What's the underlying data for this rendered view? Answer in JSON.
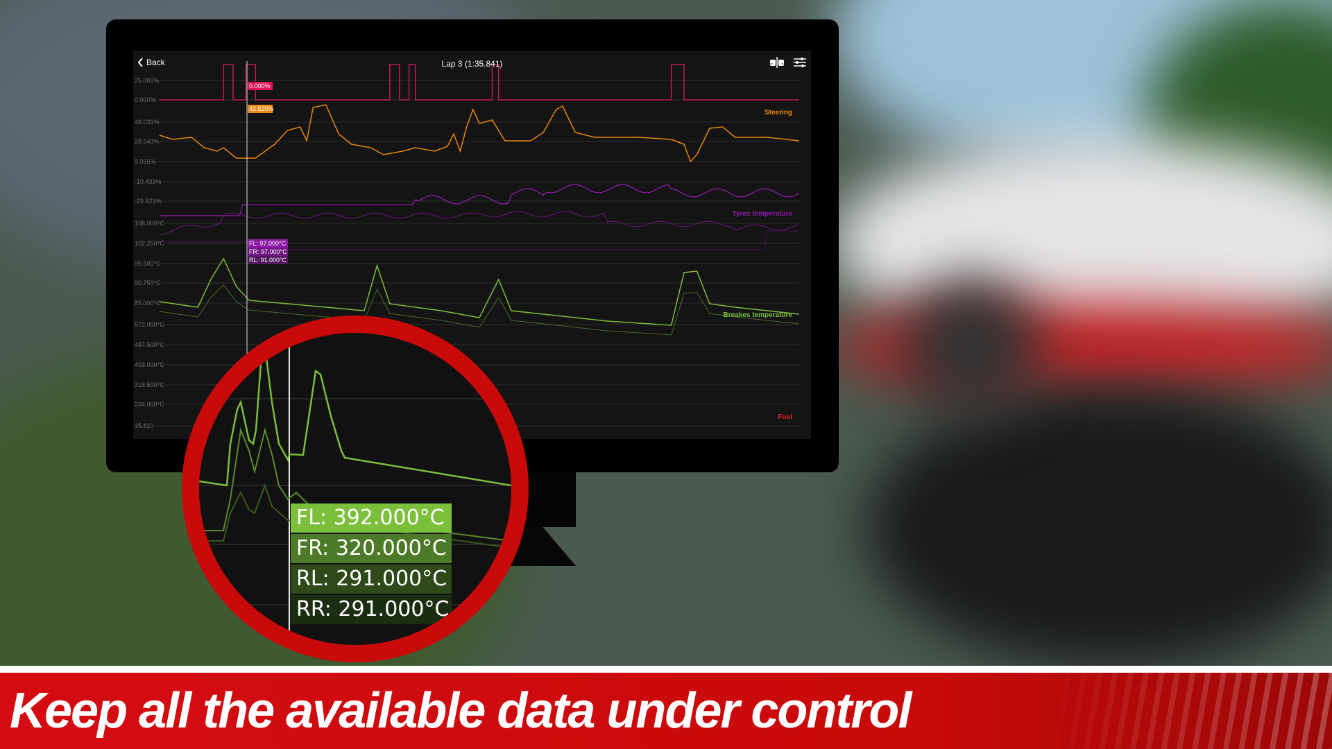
{
  "header": {
    "back_label": "Back",
    "title": "Lap 3 (1:35.841)",
    "icons": [
      "car-compare-icon",
      "sliders-icon"
    ]
  },
  "colors": {
    "throttle": "#c2185b",
    "steering": "#e8870c",
    "tyres": "#8e1aa8",
    "brakes": "#7cbf3a",
    "fuel": "#e02020",
    "ring": "#c80a0a"
  },
  "charts": [
    {
      "label": "",
      "ticks": [
        "25.000%",
        "0.000%"
      ],
      "tooltip": [
        "0.000%"
      ]
    },
    {
      "label": "Steering",
      "ticks": [
        "48.031%",
        "28.543%",
        "9.055%",
        "-10.433%",
        "-29.921%"
      ],
      "tooltip": [
        "42.520%"
      ]
    },
    {
      "label": "Tyres temperature",
      "ticks": [
        "108.000°C",
        "102.250°C",
        "96.500°C",
        "90.750°C",
        "85.000°C"
      ],
      "tooltip": [
        "FL: 97.000°C",
        "FR: 97.000°C",
        "RL: 91.000°C"
      ]
    },
    {
      "label": "Breakes temperature",
      "ticks": [
        "572.000°C",
        "487.500°C",
        "403.000°C",
        "318.500°C",
        "234.000°C"
      ],
      "tooltip": []
    },
    {
      "label": "Fuel",
      "ticks": [
        "35.810"
      ],
      "tooltip": []
    }
  ],
  "magnifier": {
    "tooltip": [
      "FL: 392.000°C",
      "FR: 320.000°C",
      "RL: 291.000°C",
      "RR: 291.000°C"
    ]
  },
  "banner": {
    "text": "Keep all the available data under control"
  }
}
